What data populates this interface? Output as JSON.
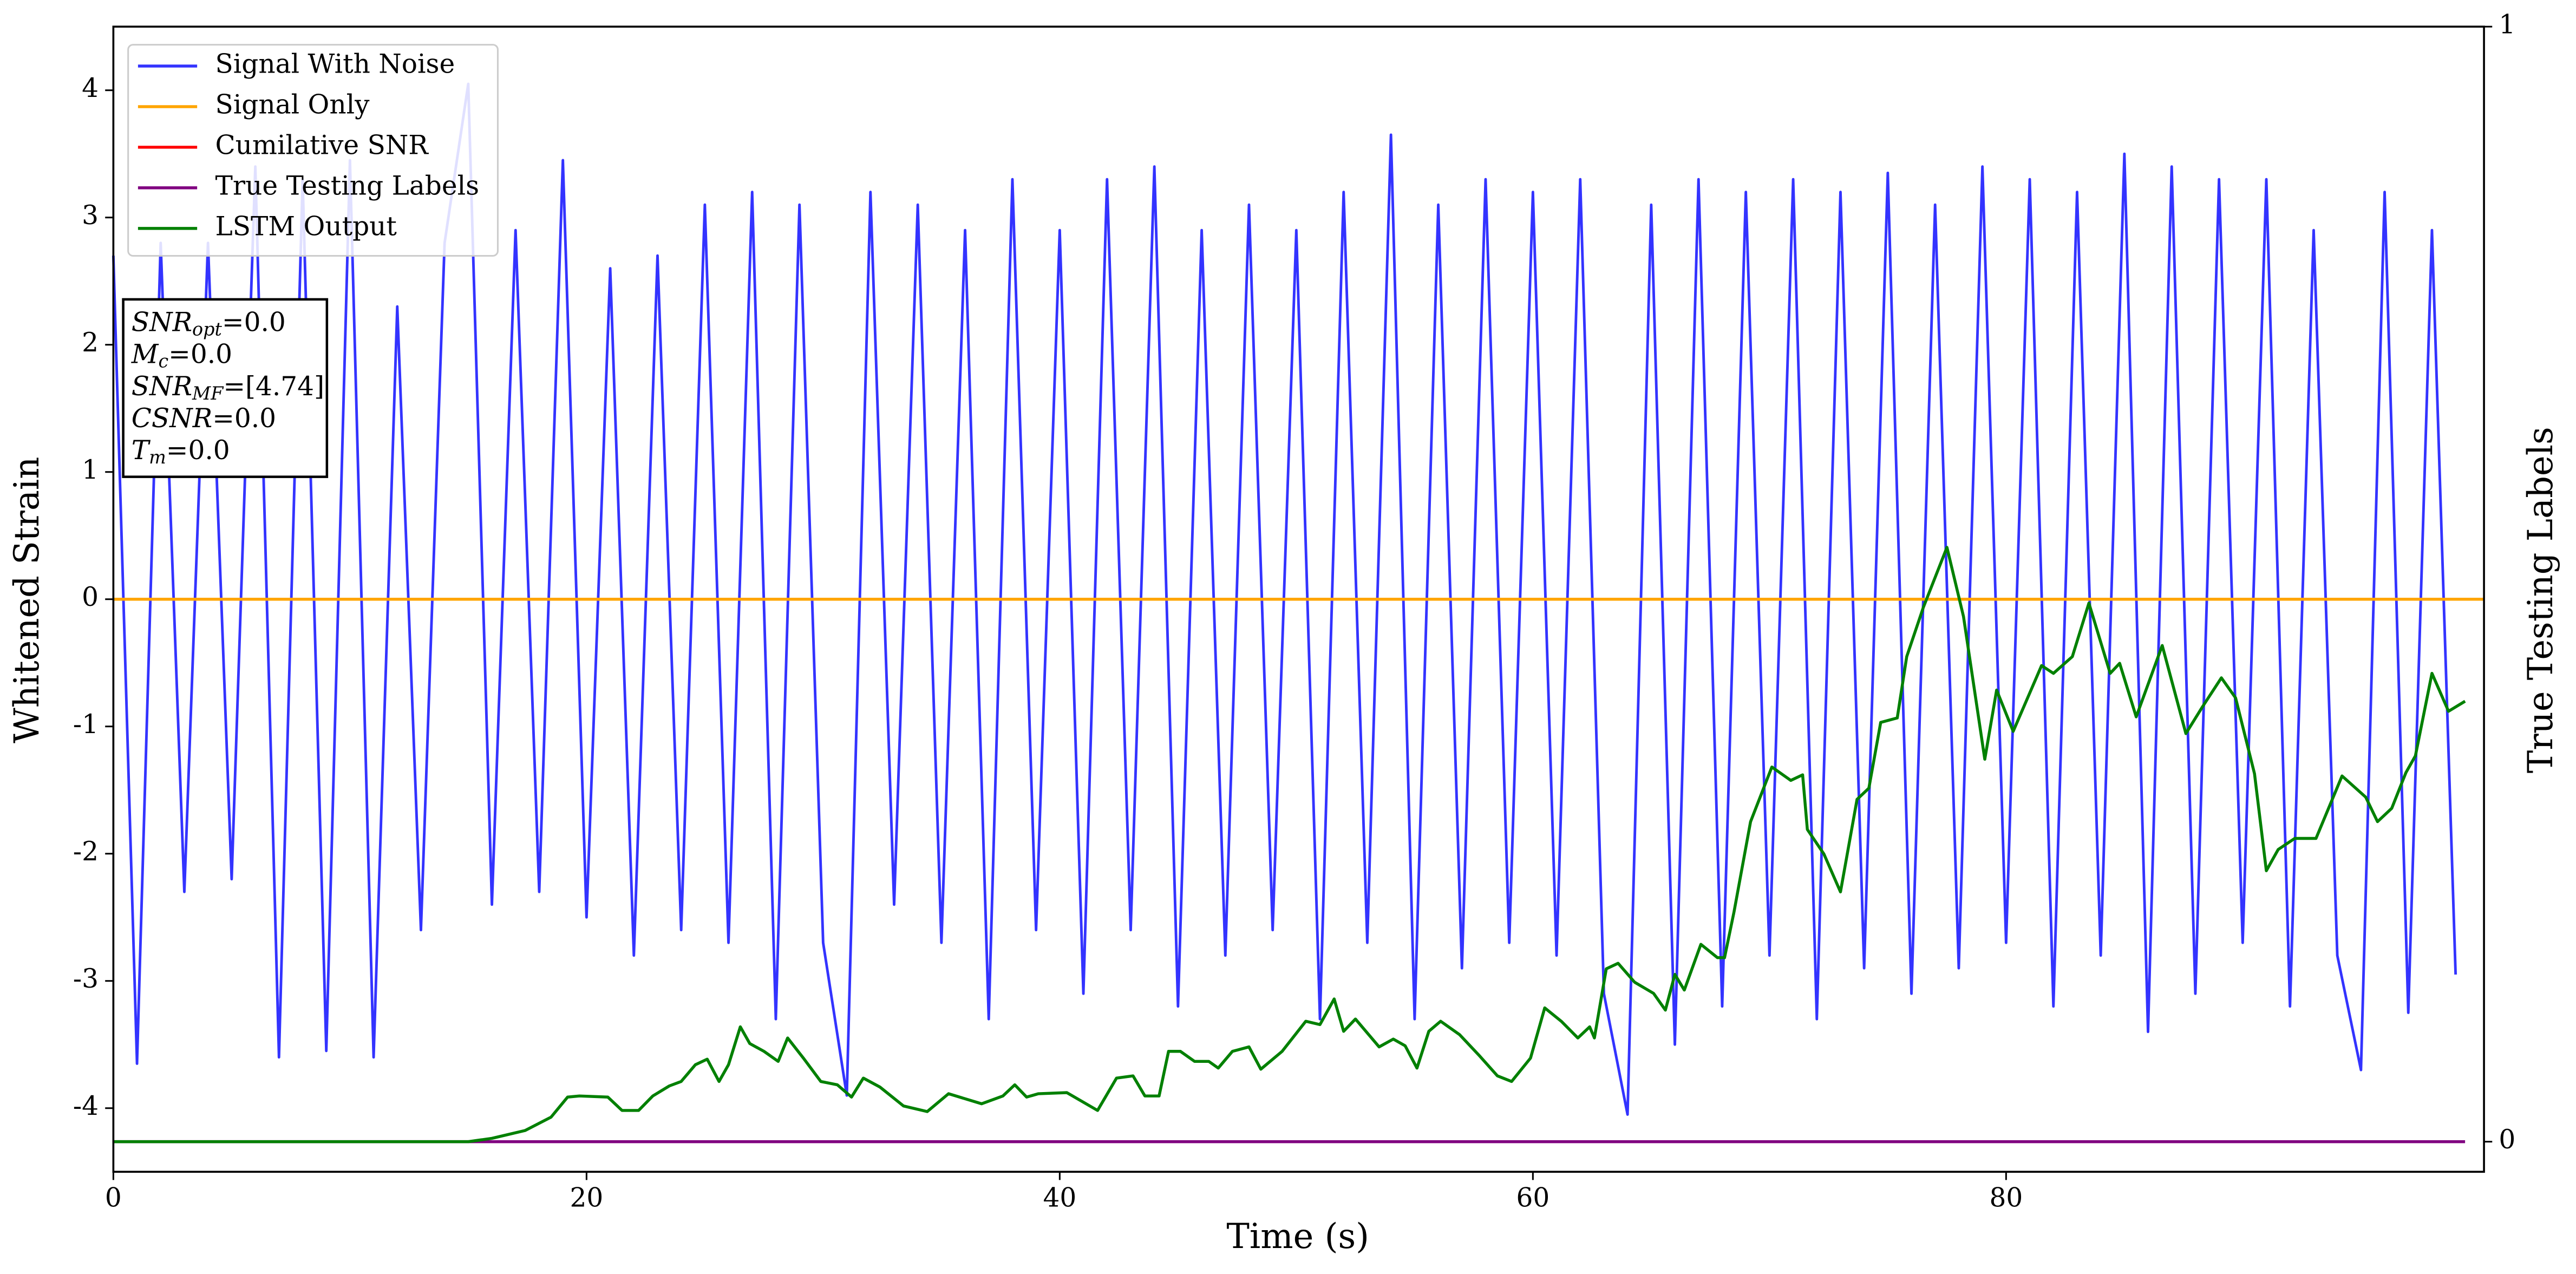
{
  "chart_data": {
    "type": "line",
    "xlabel": "Time (s)",
    "ylabel": "Whitened Strain",
    "y2label": "True Testing Labels",
    "xlim": [
      0,
      100.2
    ],
    "ylim": [
      -4.5,
      4.5
    ],
    "y2lim": [
      -0.027,
      1
    ],
    "xticks": [
      0,
      20,
      40,
      60,
      80
    ],
    "yticks": [
      -4,
      -3,
      -2,
      -1,
      0,
      1,
      2,
      3,
      4
    ],
    "y2ticks": [
      0,
      1
    ],
    "legend": "upper left",
    "grid": false,
    "annotation": [
      {
        "main": "SNR",
        "sub": "opt",
        "rest": "=0.0"
      },
      {
        "main": "M",
        "sub": "c",
        "rest": "=0.0"
      },
      {
        "main": "SNR",
        "sub": "MF",
        "rest": "=[4.74]"
      },
      {
        "main": "CSNR",
        "rest": "=0.0"
      },
      {
        "main": "T",
        "sub": "m",
        "rest": "=0.0"
      }
    ],
    "series": [
      {
        "name": "Signal With Noise",
        "color": "#3333ff",
        "x": [
          0,
          1,
          2,
          3,
          4,
          5,
          6,
          7,
          8,
          9,
          10,
          11,
          12,
          13,
          14,
          15,
          16,
          17,
          18,
          19,
          20,
          21,
          22,
          23,
          24,
          25,
          26,
          27,
          28,
          29,
          30,
          31,
          32,
          33,
          34,
          35,
          36,
          37,
          38,
          39,
          40,
          41,
          42,
          43,
          44,
          45,
          46,
          47,
          48,
          49,
          50,
          51,
          52,
          53,
          54,
          55,
          56,
          57,
          58,
          59,
          60,
          61,
          62,
          63,
          64,
          65,
          66,
          67,
          68,
          69,
          70,
          71,
          72,
          73,
          74,
          75,
          76,
          77,
          78,
          79,
          80,
          81,
          82,
          83,
          84,
          85,
          86,
          87,
          88,
          89,
          90,
          91,
          92,
          93,
          94,
          95,
          96,
          97,
          98,
          99
        ],
        "values": [
          2.7,
          -3.65,
          2.8,
          -2.3,
          2.8,
          -2.2,
          3.4,
          -3.6,
          3.3,
          -3.55,
          3.45,
          -3.6,
          2.3,
          -2.6,
          2.8,
          4.05,
          -2.4,
          2.9,
          -2.3,
          3.45,
          -2.5,
          2.6,
          -2.8,
          2.7,
          -2.6,
          3.1,
          -2.7,
          3.2,
          -3.3,
          3.1,
          -2.7,
          -3.9,
          3.2,
          -2.4,
          3.1,
          -2.7,
          2.9,
          -3.3,
          3.3,
          -2.6,
          2.9,
          -3.1,
          3.3,
          -2.6,
          3.4,
          -3.2,
          2.9,
          -2.8,
          3.1,
          -2.6,
          2.9,
          -3.3,
          3.2,
          -2.7,
          3.65,
          -3.3,
          3.1,
          -2.9,
          3.3,
          -2.7,
          3.2,
          -2.8,
          3.3,
          -3.1,
          -4.05,
          3.1,
          -3.5,
          3.3,
          -3.2,
          3.2,
          -2.8,
          3.3,
          -3.3,
          3.2,
          -2.9,
          3.35,
          -3.1,
          3.1,
          -2.9,
          3.4,
          -2.7,
          3.3,
          -3.2,
          3.2,
          -2.8,
          3.5,
          -3.4,
          3.4,
          -3.1,
          3.3,
          -2.7,
          3.3,
          -3.2,
          2.9,
          -2.8,
          -3.7,
          3.2,
          -3.25,
          2.9,
          -2.95
        ]
      },
      {
        "name": "Signal Only",
        "color": "#ffa500",
        "x": [
          0,
          100.2
        ],
        "values": [
          0,
          0
        ]
      },
      {
        "name": "Cumilative SNR",
        "color": "#ff0000",
        "x": [
          0,
          100.2
        ],
        "values": [
          0,
          0
        ]
      },
      {
        "name": "True Testing Labels",
        "color": "#800080",
        "axis": "y2",
        "x": [
          0,
          99.4
        ],
        "values": [
          0,
          0
        ]
      },
      {
        "name": "LSTM Output",
        "color": "#008000",
        "axis": "y2",
        "x": [
          0,
          15.0,
          16.0,
          17.4,
          18.5,
          19.2,
          19.7,
          20.9,
          21.5,
          22.2,
          22.8,
          23.5,
          24.0,
          24.6,
          25.1,
          25.6,
          26.0,
          26.5,
          26.9,
          27.5,
          28.1,
          28.5,
          29.2,
          29.9,
          30.6,
          31.2,
          31.7,
          32.4,
          33.4,
          34.4,
          35.3,
          36.7,
          37.6,
          38.1,
          38.6,
          39.1,
          40.3,
          41.6,
          42.4,
          43.1,
          43.6,
          44.2,
          44.6,
          45.1,
          45.7,
          46.3,
          46.7,
          47.3,
          48.0,
          48.5,
          49.4,
          50.4,
          51.0,
          51.6,
          52.0,
          52.5,
          53.5,
          54.1,
          54.6,
          55.1,
          55.6,
          56.1,
          56.9,
          57.7,
          58.5,
          59.1,
          59.9,
          60.5,
          61.2,
          61.9,
          62.4,
          62.6,
          63.1,
          63.6,
          64.3,
          65.1,
          65.6,
          66.0,
          66.4,
          67.1,
          67.8,
          68.1,
          68.5,
          69.2,
          70.1,
          70.9,
          71.4,
          71.6,
          72.3,
          73.0,
          73.7,
          74.2,
          74.7,
          75.4,
          75.8,
          76.5,
          77.5,
          78.2,
          79.1,
          79.6,
          80.3,
          81.5,
          82.0,
          82.8,
          83.5,
          84.4,
          84.8,
          85.5,
          86.6,
          87.6,
          88.3,
          89.1,
          89.7,
          90.5,
          91.0,
          91.5,
          92.2,
          93.1,
          94.2,
          95.2,
          95.7,
          96.3,
          96.9,
          97.3,
          98.0,
          98.7,
          99.4
        ],
        "values": [
          0,
          0,
          0.003,
          0.01,
          0.022,
          0.04,
          0.041,
          0.04,
          0.028,
          0.028,
          0.041,
          0.05,
          0.054,
          0.069,
          0.074,
          0.054,
          0.069,
          0.103,
          0.088,
          0.081,
          0.072,
          0.093,
          0.074,
          0.054,
          0.051,
          0.04,
          0.057,
          0.049,
          0.032,
          0.027,
          0.043,
          0.034,
          0.041,
          0.051,
          0.04,
          0.043,
          0.044,
          0.028,
          0.057,
          0.059,
          0.041,
          0.041,
          0.081,
          0.081,
          0.072,
          0.072,
          0.066,
          0.081,
          0.085,
          0.065,
          0.081,
          0.108,
          0.105,
          0.128,
          0.099,
          0.11,
          0.085,
          0.092,
          0.086,
          0.066,
          0.099,
          0.108,
          0.096,
          0.078,
          0.059,
          0.054,
          0.075,
          0.12,
          0.108,
          0.093,
          0.103,
          0.093,
          0.155,
          0.16,
          0.143,
          0.133,
          0.118,
          0.15,
          0.136,
          0.177,
          0.165,
          0.165,
          0.206,
          0.287,
          0.336,
          0.324,
          0.329,
          0.28,
          0.258,
          0.224,
          0.307,
          0.317,
          0.376,
          0.38,
          0.435,
          0.479,
          0.533,
          0.471,
          0.343,
          0.405,
          0.368,
          0.427,
          0.42,
          0.435,
          0.483,
          0.42,
          0.429,
          0.381,
          0.445,
          0.366,
          0.39,
          0.416,
          0.398,
          0.33,
          0.243,
          0.262,
          0.272,
          0.272,
          0.328,
          0.309,
          0.287,
          0.299,
          0.331,
          0.346,
          0.42,
          0.386,
          0.395
        ]
      }
    ]
  }
}
